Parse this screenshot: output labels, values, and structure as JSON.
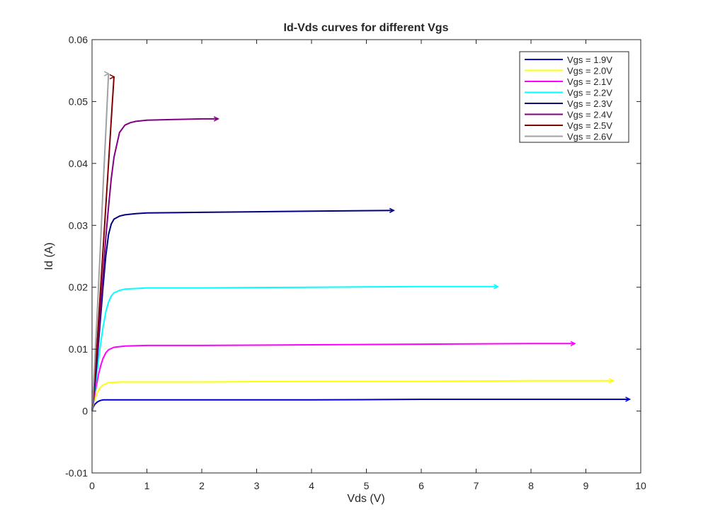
{
  "chart_data": {
    "type": "line",
    "title": "Id-Vds curves for different Vgs",
    "xlabel": "Vds (V)",
    "ylabel": "Id (A)",
    "xlim": [
      0,
      10
    ],
    "ylim": [
      -0.01,
      0.06
    ],
    "xticks": [
      "0",
      "1",
      "2",
      "3",
      "4",
      "5",
      "6",
      "7",
      "8",
      "9",
      "10"
    ],
    "yticks": [
      "-0.01",
      "0",
      "0.01",
      "0.02",
      "0.03",
      "0.04",
      "0.05",
      "0.06"
    ],
    "grid": false,
    "legend_position": "top-right",
    "series": [
      {
        "name": "Vgs = 1.9V",
        "color": "#0000cc",
        "x": [
          0,
          0.02,
          0.05,
          0.1,
          0.15,
          0.2,
          0.3,
          0.5,
          1,
          2,
          4,
          6,
          8,
          9.8
        ],
        "y": [
          0,
          0.0006,
          0.0011,
          0.0015,
          0.0017,
          0.0018,
          0.0018,
          0.0018,
          0.0018,
          0.0018,
          0.0018,
          0.0019,
          0.0019,
          0.0019
        ]
      },
      {
        "name": "Vgs = 2.0V",
        "color": "#ffff00",
        "x": [
          0,
          0.03,
          0.06,
          0.1,
          0.15,
          0.2,
          0.3,
          0.5,
          1,
          2,
          4,
          6,
          8,
          9.5
        ],
        "y": [
          0,
          0.0012,
          0.0022,
          0.0031,
          0.0038,
          0.0042,
          0.0046,
          0.0047,
          0.0047,
          0.0047,
          0.0048,
          0.0048,
          0.0049,
          0.0049
        ]
      },
      {
        "name": "Vgs = 2.1V",
        "color": "#ff00ff",
        "x": [
          0,
          0.04,
          0.08,
          0.12,
          0.16,
          0.2,
          0.25,
          0.3,
          0.4,
          0.6,
          1,
          2,
          4,
          6,
          8,
          8.8
        ],
        "y": [
          0,
          0.0022,
          0.0042,
          0.006,
          0.0074,
          0.0085,
          0.0094,
          0.0099,
          0.0103,
          0.0105,
          0.0106,
          0.0106,
          0.0107,
          0.0108,
          0.0109,
          0.0109
        ]
      },
      {
        "name": "Vgs = 2.2V",
        "color": "#00ffff",
        "x": [
          0,
          0.05,
          0.1,
          0.15,
          0.2,
          0.25,
          0.3,
          0.35,
          0.4,
          0.5,
          0.6,
          0.8,
          1,
          2,
          4,
          6,
          7.4
        ],
        "y": [
          0,
          0.0035,
          0.007,
          0.0105,
          0.0135,
          0.016,
          0.0176,
          0.0186,
          0.0191,
          0.0195,
          0.0197,
          0.0198,
          0.0199,
          0.0199,
          0.02,
          0.0201,
          0.0201
        ]
      },
      {
        "name": "Vgs = 2.3V",
        "color": "#000080",
        "x": [
          0,
          0.05,
          0.1,
          0.15,
          0.2,
          0.25,
          0.3,
          0.35,
          0.4,
          0.5,
          0.6,
          0.8,
          1,
          2,
          3,
          4,
          5.5
        ],
        "y": [
          0,
          0.004,
          0.009,
          0.0145,
          0.02,
          0.025,
          0.0285,
          0.0302,
          0.031,
          0.0315,
          0.0317,
          0.0319,
          0.032,
          0.0321,
          0.0322,
          0.0323,
          0.0324
        ]
      },
      {
        "name": "Vgs = 2.4V",
        "color": "#800080",
        "x": [
          0,
          0.05,
          0.1,
          0.15,
          0.2,
          0.25,
          0.3,
          0.35,
          0.4,
          0.5,
          0.6,
          0.7,
          0.8,
          1,
          1.5,
          2,
          2.3
        ],
        "y": [
          0,
          0.005,
          0.01,
          0.016,
          0.022,
          0.028,
          0.033,
          0.0375,
          0.041,
          0.045,
          0.0462,
          0.0466,
          0.0468,
          0.047,
          0.0471,
          0.0472,
          0.0472
        ]
      },
      {
        "name": "Vgs = 2.5V",
        "color": "#800000",
        "x": [
          0,
          0.05,
          0.1,
          0.15,
          0.2,
          0.25,
          0.3,
          0.35,
          0.4
        ],
        "y": [
          0,
          0.0055,
          0.012,
          0.019,
          0.026,
          0.033,
          0.04,
          0.047,
          0.054
        ]
      },
      {
        "name": "Vgs = 2.6V",
        "color": "#a0a0a0",
        "x": [
          0,
          0.05,
          0.1,
          0.15,
          0.2,
          0.25,
          0.3
        ],
        "y": [
          0,
          0.008,
          0.017,
          0.026,
          0.036,
          0.045,
          0.0545
        ]
      }
    ]
  }
}
